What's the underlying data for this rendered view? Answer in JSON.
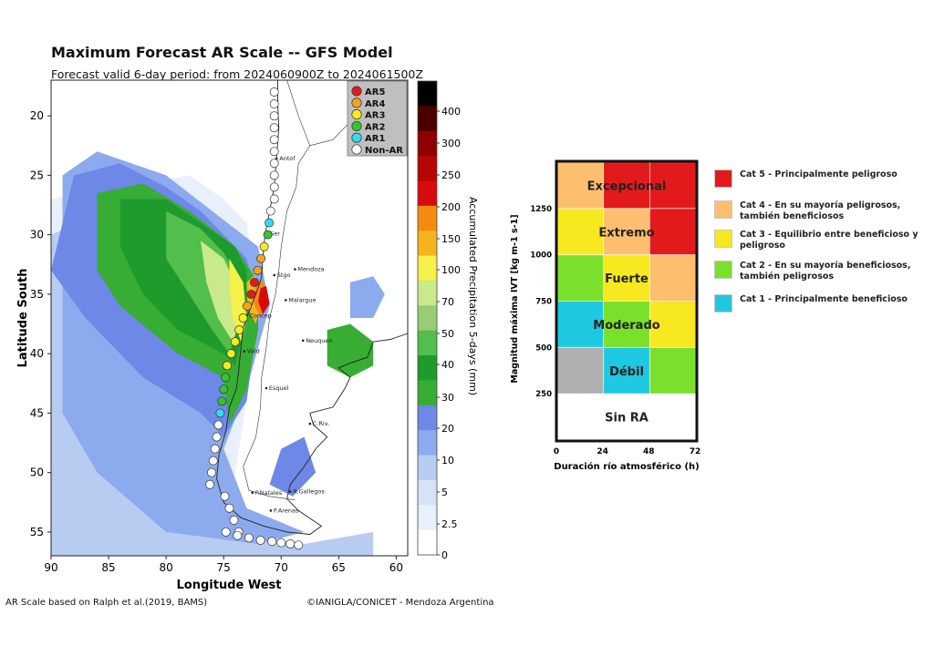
{
  "title": "Maximum Forecast AR Scale -- GFS Model",
  "subtitle": "Forecast valid 6-day period: from 2024060900Z to 2024061500Z",
  "footer_left": "AR Scale based on Ralph et al.(2019, BAMS)",
  "footer_right": "©IANIGLA/CONICET - Mendoza Argentina",
  "colors": {
    "cat5": "#e31a1c",
    "cat4": "#fdbf6f",
    "cat3": "#f7e81f",
    "cat2": "#7be02b",
    "cat1": "#1ec8e0",
    "non": "#ffffff",
    "gray": "#b0aeb0"
  },
  "chart_data": [
    {
      "type": "map",
      "xlabel": "Longitude West",
      "ylabel": "Latitude South",
      "x_ticks": [
        "90",
        "85",
        "80",
        "75",
        "70",
        "65",
        "60"
      ],
      "y_ticks": [
        "20",
        "25",
        "30",
        "35",
        "40",
        "45",
        "50",
        "55"
      ],
      "xlim": [
        90,
        59
      ],
      "ylim": [
        17,
        57
      ],
      "colorbar": {
        "label": "Accumulated Precipitation 5-days (mm)",
        "ticks": [
          "0",
          "2.5",
          "5",
          "10",
          "20",
          "30",
          "40",
          "50",
          "70",
          "100",
          "150",
          "200",
          "250",
          "300",
          "400"
        ],
        "colors": [
          "#ffffff",
          "#e8f0fb",
          "#d6e3f7",
          "#b8ccf2",
          "#8caaee",
          "#6d88e6",
          "#37ad34",
          "#1f9a2c",
          "#52be4c",
          "#99cc77",
          "#c8ea8a",
          "#f6f04a",
          "#f5b41e",
          "#f58a10",
          "#d70b0b",
          "#b70505",
          "#8e0000",
          "#4a0000",
          "#000000"
        ]
      },
      "legend": {
        "position": "top-right",
        "entries": [
          {
            "label": "AR5",
            "color": "#e31a1c"
          },
          {
            "label": "AR4",
            "color": "#f5a21e"
          },
          {
            "label": "AR3",
            "color": "#f7ec1f"
          },
          {
            "label": "AR2",
            "color": "#34c52e"
          },
          {
            "label": "AR1",
            "color": "#36d9f0"
          },
          {
            "label": "Non-AR",
            "color": "#ffffff"
          }
        ]
      },
      "cities": [
        {
          "name": "Antof",
          "lon": 70.4,
          "lat": 23.6
        },
        {
          "name": "Ser",
          "lon": 71.2,
          "lat": 29.9
        },
        {
          "name": "Mendoza",
          "lon": 68.8,
          "lat": 32.9
        },
        {
          "name": "Stgo",
          "lon": 70.6,
          "lat": 33.4
        },
        {
          "name": "Malargue",
          "lon": 69.6,
          "lat": 35.5
        },
        {
          "name": "Concep",
          "lon": 73.0,
          "lat": 36.8
        },
        {
          "name": "Neuquen",
          "lon": 68.1,
          "lat": 38.9
        },
        {
          "name": "Vald",
          "lon": 73.2,
          "lat": 39.8
        },
        {
          "name": "Esquel",
          "lon": 71.3,
          "lat": 42.9
        },
        {
          "name": "C.Riv.",
          "lon": 67.5,
          "lat": 45.9
        },
        {
          "name": "P.Natales",
          "lon": 72.5,
          "lat": 51.7
        },
        {
          "name": "R.Gallegos",
          "lon": 69.2,
          "lat": 51.6
        },
        {
          "name": "P.Arenas",
          "lon": 70.9,
          "lat": 53.2
        }
      ],
      "ar_track": [
        {
          "lat": 18,
          "cat": "Non-AR"
        },
        {
          "lat": 19,
          "cat": "Non-AR"
        },
        {
          "lat": 20,
          "cat": "Non-AR"
        },
        {
          "lat": 21,
          "cat": "Non-AR"
        },
        {
          "lat": 22,
          "cat": "Non-AR"
        },
        {
          "lat": 23,
          "cat": "Non-AR"
        },
        {
          "lat": 24,
          "cat": "Non-AR"
        },
        {
          "lat": 25,
          "cat": "Non-AR"
        },
        {
          "lat": 26,
          "cat": "Non-AR"
        },
        {
          "lat": 27,
          "cat": "Non-AR"
        },
        {
          "lat": 28,
          "cat": "Non-AR"
        },
        {
          "lat": 29,
          "cat": "AR1"
        },
        {
          "lat": 30,
          "cat": "AR2"
        },
        {
          "lat": 31,
          "cat": "AR3"
        },
        {
          "lat": 32,
          "cat": "AR4"
        },
        {
          "lat": 33,
          "cat": "AR4"
        },
        {
          "lat": 34,
          "cat": "AR5"
        },
        {
          "lat": 35,
          "cat": "AR5"
        },
        {
          "lat": 36,
          "cat": "AR4"
        },
        {
          "lat": 37,
          "cat": "AR3"
        },
        {
          "lat": 38,
          "cat": "AR3"
        },
        {
          "lat": 39,
          "cat": "AR3"
        },
        {
          "lat": 40,
          "cat": "AR3"
        },
        {
          "lat": 41,
          "cat": "AR3"
        },
        {
          "lat": 42,
          "cat": "AR2"
        },
        {
          "lat": 43,
          "cat": "AR2"
        },
        {
          "lat": 44,
          "cat": "AR2"
        },
        {
          "lat": 45,
          "cat": "AR1"
        },
        {
          "lat": 46,
          "cat": "Non-AR"
        },
        {
          "lat": 47,
          "cat": "Non-AR"
        },
        {
          "lat": 48,
          "cat": "Non-AR"
        },
        {
          "lat": 49,
          "cat": "Non-AR"
        },
        {
          "lat": 50,
          "cat": "Non-AR"
        },
        {
          "lat": 51,
          "cat": "Non-AR"
        },
        {
          "lat": 52,
          "cat": "Non-AR"
        },
        {
          "lat": 53,
          "cat": "Non-AR"
        },
        {
          "lat": 54,
          "cat": "Non-AR"
        },
        {
          "lat": 55,
          "cat": "Non-AR"
        }
      ]
    },
    {
      "type": "heatmap",
      "xlabel": "Duración río atmosférico (h)",
      "ylabel": "Magnitud máxima IVT  [kg m-1 s-1]",
      "x_ticks": [
        "0",
        "24",
        "48",
        "72"
      ],
      "y_ticks": [
        "250",
        "500",
        "750",
        "1000",
        "1250"
      ],
      "rows": [
        {
          "label": "Excepcional",
          "cells": [
            "cat4",
            "cat5",
            "cat5"
          ]
        },
        {
          "label": "Extremo",
          "cells": [
            "cat3",
            "cat4",
            "cat5"
          ]
        },
        {
          "label": "Fuerte",
          "cells": [
            "cat2",
            "cat3",
            "cat4"
          ]
        },
        {
          "label": "Moderado",
          "cells": [
            "cat1",
            "cat2",
            "cat3"
          ]
        },
        {
          "label": "Débil",
          "cells": [
            "gray",
            "cat1",
            "cat2"
          ]
        },
        {
          "label": "Sin RA",
          "cells": [
            "non",
            "non",
            "non"
          ]
        }
      ],
      "legend": [
        {
          "key": "cat5",
          "label": "Cat 5 - Principalmente peligroso"
        },
        {
          "key": "cat4",
          "label": "Cat 4 - En su mayoría peligrosos, también beneficiosos"
        },
        {
          "key": "cat3",
          "label": "Cat 3 - Equilibrio entre beneficioso y peligroso"
        },
        {
          "key": "cat2",
          "label": "Cat 2 - En su mayoría beneficiosos, también peligrosos"
        },
        {
          "key": "cat1",
          "label": "Cat 1 - Principalmente beneficioso"
        }
      ]
    }
  ]
}
